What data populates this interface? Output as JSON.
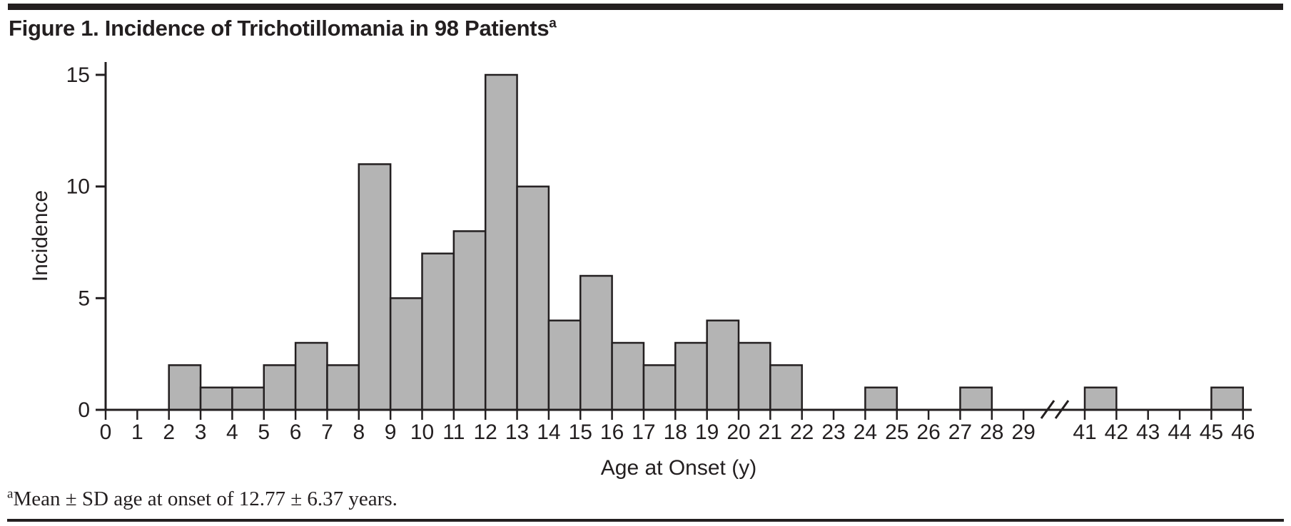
{
  "figure": {
    "title": "Figure 1. Incidence of Trichotillomania in 98 Patients",
    "title_superscript": "a",
    "footnote_marker": "a",
    "footnote": "Mean ± SD age at onset of 12.77 ± 6.37 years."
  },
  "chart_data": {
    "type": "bar",
    "subtype": "histogram",
    "title": "Figure 1. Incidence of Trichotillomania in 98 Patients",
    "xlabel": "Age at Onset (y)",
    "ylabel": "Incidence",
    "ylim": [
      0,
      15
    ],
    "y_ticks": [
      0,
      5,
      10,
      15
    ],
    "x_ticks": [
      0,
      1,
      2,
      3,
      4,
      5,
      6,
      7,
      8,
      9,
      10,
      11,
      12,
      13,
      14,
      15,
      16,
      17,
      18,
      19,
      20,
      21,
      22,
      23,
      24,
      25,
      26,
      27,
      28,
      29
    ],
    "x_ticks_after_break": [
      41,
      42,
      43,
      44,
      45,
      46
    ],
    "axis_break_between": [
      29,
      41
    ],
    "bin_width": 1,
    "bins": [
      {
        "age_start": 2,
        "count": 2
      },
      {
        "age_start": 3,
        "count": 1
      },
      {
        "age_start": 4,
        "count": 1
      },
      {
        "age_start": 5,
        "count": 2
      },
      {
        "age_start": 6,
        "count": 3
      },
      {
        "age_start": 7,
        "count": 2
      },
      {
        "age_start": 8,
        "count": 11
      },
      {
        "age_start": 9,
        "count": 5
      },
      {
        "age_start": 10,
        "count": 7
      },
      {
        "age_start": 11,
        "count": 8
      },
      {
        "age_start": 12,
        "count": 15
      },
      {
        "age_start": 13,
        "count": 10
      },
      {
        "age_start": 14,
        "count": 4
      },
      {
        "age_start": 15,
        "count": 6
      },
      {
        "age_start": 16,
        "count": 3
      },
      {
        "age_start": 17,
        "count": 2
      },
      {
        "age_start": 18,
        "count": 3
      },
      {
        "age_start": 19,
        "count": 4
      },
      {
        "age_start": 20,
        "count": 3
      },
      {
        "age_start": 21,
        "count": 2
      },
      {
        "age_start": 24,
        "count": 1
      },
      {
        "age_start": 27,
        "count": 1
      },
      {
        "age_start": 41,
        "count": 1
      },
      {
        "age_start": 45,
        "count": 1
      }
    ],
    "total_n": 98,
    "grid": false,
    "legend": null
  },
  "colors": {
    "bar_fill": "#b4b4b4",
    "bar_stroke": "#231f20",
    "axis": "#231f20",
    "text": "#231f20",
    "rule": "#231f20",
    "background": "#ffffff"
  }
}
